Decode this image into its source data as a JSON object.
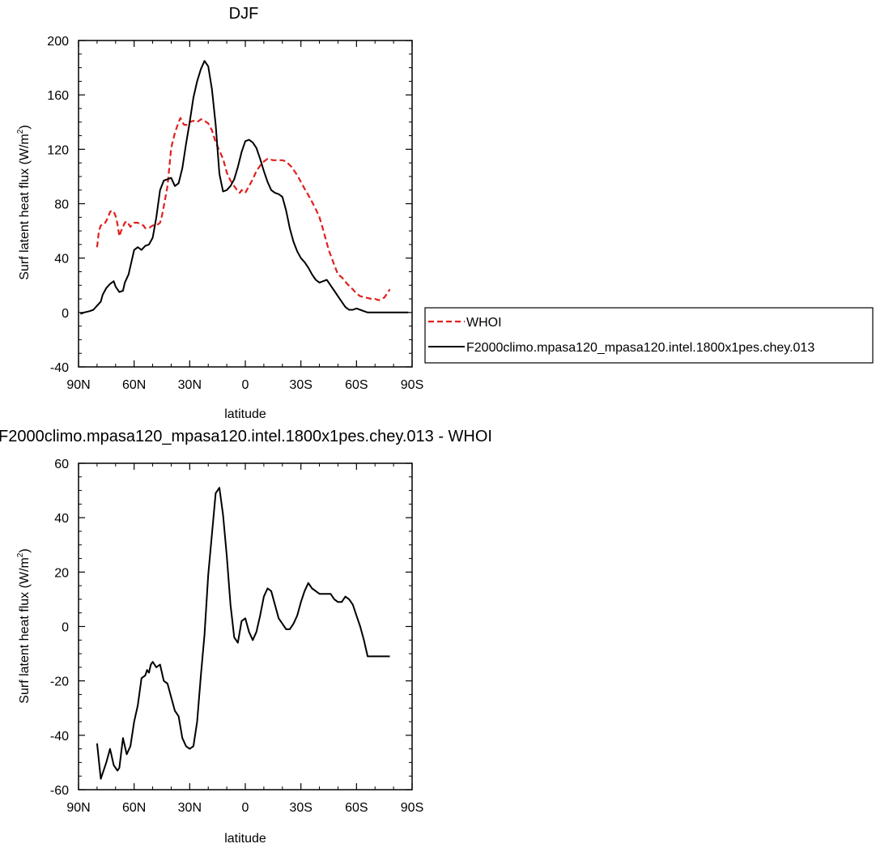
{
  "colors": {
    "whoi": "#e0201c",
    "model": "#000000",
    "axis": "#000000"
  },
  "chart_data": [
    {
      "type": "line",
      "title": "DJF",
      "xlabel": "latitude",
      "ylabel": "Surf latent heat flux (W/m",
      "ylabel_sup": "2",
      "ylabel_close": ")",
      "xlim": [
        90,
        -90
      ],
      "ylim": [
        -40,
        200
      ],
      "xticks": [
        90,
        60,
        30,
        0,
        -30,
        -60,
        -90
      ],
      "xtick_labels": [
        "90N",
        "60N",
        "30N",
        "0",
        "30S",
        "60S",
        "90S"
      ],
      "yticks": [
        -40,
        0,
        40,
        80,
        120,
        160,
        200
      ],
      "ytick_labels": [
        "-40",
        "0",
        "40",
        "80",
        "120",
        "160",
        "200"
      ],
      "legend": {
        "placement": "right",
        "entries": [
          "WHOI",
          "F2000climo.mpasa120_mpasa120.intel.1800x1pes.chey.013"
        ]
      },
      "series": [
        {
          "name": "WHOI",
          "style": "dashed",
          "x": [
            80,
            79,
            78,
            76,
            74,
            73,
            72,
            71,
            70,
            69,
            68,
            67,
            66,
            65,
            64,
            62,
            60,
            58,
            57,
            55,
            54,
            52,
            51,
            50,
            48,
            46,
            45,
            44,
            42,
            41,
            40,
            38,
            36,
            35,
            34,
            33,
            32,
            31,
            30,
            28,
            26,
            25,
            24,
            23,
            22,
            21,
            20,
            18,
            16,
            14,
            12,
            11,
            10,
            8,
            6,
            5,
            4,
            3,
            2,
            0,
            -2,
            -4,
            -6,
            -8,
            -10,
            -12,
            -15,
            -20,
            -22,
            -25,
            -28,
            -30,
            -32,
            -35,
            -38,
            -40,
            -42,
            -45,
            -48,
            -50,
            -52,
            -55,
            -58,
            -60,
            -62,
            -65,
            -68,
            -70,
            -72,
            -75,
            -78
          ],
          "values": [
            48,
            60,
            64,
            65,
            70,
            74,
            75,
            74,
            71,
            65,
            56,
            60,
            63,
            66,
            67,
            63,
            66,
            66,
            65,
            64,
            62,
            62,
            63,
            64,
            64,
            66,
            71,
            78,
            93,
            107,
            121,
            132,
            140,
            143,
            140,
            138,
            138,
            138,
            140,
            141,
            140,
            141,
            142,
            142,
            141,
            140,
            139,
            134,
            125,
            119,
            113,
            108,
            103,
            97,
            93,
            91,
            89,
            88,
            90,
            88,
            93,
            98,
            104,
            108,
            111,
            113,
            112,
            112,
            111,
            107,
            101,
            96,
            91,
            84,
            76,
            70,
            61,
            46,
            35,
            28,
            26,
            21,
            17,
            14,
            12,
            11,
            10,
            10,
            9,
            11,
            17
          ]
        },
        {
          "name": "F2000climo.mpasa120_mpasa120.intel.1800x1pes.chey.013",
          "style": "solid",
          "x": [
            89,
            87,
            84,
            82,
            80,
            78,
            77,
            75,
            73,
            71,
            70,
            68,
            66,
            65,
            63,
            60,
            58,
            56,
            54,
            52,
            50,
            48,
            46,
            44,
            42,
            40,
            38,
            36,
            34,
            32,
            30,
            28,
            26,
            24,
            22,
            20,
            18,
            16,
            14,
            12,
            10,
            8,
            6,
            4,
            2,
            0,
            -2,
            -4,
            -6,
            -8,
            -10,
            -12,
            -14,
            -16,
            -18,
            -20,
            -22,
            -24,
            -26,
            -28,
            -30,
            -32,
            -34,
            -36,
            -38,
            -40,
            -42,
            -44,
            -46,
            -48,
            -50,
            -52,
            -54,
            -56,
            -58,
            -60,
            -62,
            -64,
            -66,
            -68,
            -70,
            -72,
            -74,
            -76,
            -78,
            -80,
            -82,
            -84,
            -86,
            -88
          ],
          "values": [
            -1,
            0,
            1,
            2,
            5,
            8,
            13,
            18,
            21,
            23,
            19,
            15,
            16,
            22,
            28,
            46,
            48,
            46,
            49,
            50,
            55,
            70,
            90,
            97,
            98,
            99,
            93,
            95,
            106,
            124,
            140,
            158,
            170,
            179,
            185,
            181,
            164,
            138,
            102,
            89,
            90,
            93,
            98,
            107,
            118,
            126,
            127,
            125,
            121,
            113,
            104,
            96,
            90,
            88,
            87,
            85,
            75,
            62,
            52,
            45,
            40,
            37,
            33,
            28,
            24,
            22,
            23,
            24,
            20,
            16,
            12,
            8,
            4,
            2,
            2,
            3,
            2,
            1,
            0,
            0,
            0,
            0,
            0,
            0,
            0,
            0,
            0,
            0,
            0,
            0
          ]
        }
      ]
    },
    {
      "type": "line",
      "title": "F2000climo.mpasa120_mpasa120.intel.1800x1pes.chey.013 - WHOI",
      "xlabel": "latitude",
      "ylabel": "Surf latent heat flux (W/m",
      "ylabel_sup": "2",
      "ylabel_close": ")",
      "xlim": [
        90,
        -90
      ],
      "ylim": [
        -60,
        60
      ],
      "xticks": [
        90,
        60,
        30,
        0,
        -30,
        -60,
        -90
      ],
      "xtick_labels": [
        "90N",
        "60N",
        "30N",
        "0",
        "30S",
        "60S",
        "90S"
      ],
      "yticks": [
        -60,
        -40,
        -20,
        0,
        20,
        40,
        60
      ],
      "ytick_labels": [
        "-60",
        "-40",
        "-20",
        "0",
        "20",
        "40",
        "60"
      ],
      "series": [
        {
          "name": "F2000climo.mpasa120_mpasa120.intel.1800x1pes.chey.013 - WHOI",
          "style": "solid",
          "x": [
            80,
            78,
            75,
            73,
            71,
            69,
            68,
            66,
            64,
            62,
            60,
            58,
            56,
            54,
            53,
            52,
            51,
            50,
            48,
            46,
            44,
            42,
            40,
            38,
            36,
            34,
            32,
            30,
            28,
            26,
            24,
            22,
            20,
            18,
            16,
            14,
            12,
            10,
            8,
            6,
            4,
            2,
            0,
            -2,
            -4,
            -6,
            -8,
            -10,
            -12,
            -14,
            -16,
            -18,
            -20,
            -22,
            -24,
            -26,
            -28,
            -30,
            -32,
            -34,
            -36,
            -38,
            -40,
            -42,
            -44,
            -46,
            -48,
            -50,
            -52,
            -54,
            -56,
            -58,
            -60,
            -62,
            -64,
            -66,
            -68,
            -70,
            -72,
            -74,
            -76,
            -78
          ],
          "values": [
            -43,
            -56,
            -50,
            -45,
            -51,
            -53,
            -52,
            -41,
            -47,
            -44,
            -35,
            -29,
            -19,
            -18,
            -16,
            -17,
            -14,
            -13,
            -15,
            -14,
            -20,
            -21,
            -26,
            -31,
            -33,
            -41,
            -44,
            -45,
            -44,
            -35,
            -18,
            -3,
            19,
            34,
            49,
            51,
            41,
            26,
            8,
            -4,
            -6,
            2,
            3,
            -2,
            -5,
            -2,
            4,
            11,
            14,
            13,
            8,
            3,
            1,
            -1,
            -1,
            1,
            4,
            9,
            13,
            16,
            14,
            13,
            12,
            12,
            12,
            12,
            10,
            9,
            9,
            11,
            10,
            8,
            4,
            0,
            -5,
            -11,
            -11,
            -11,
            -11,
            -11,
            -11,
            -11
          ]
        }
      ]
    }
  ]
}
